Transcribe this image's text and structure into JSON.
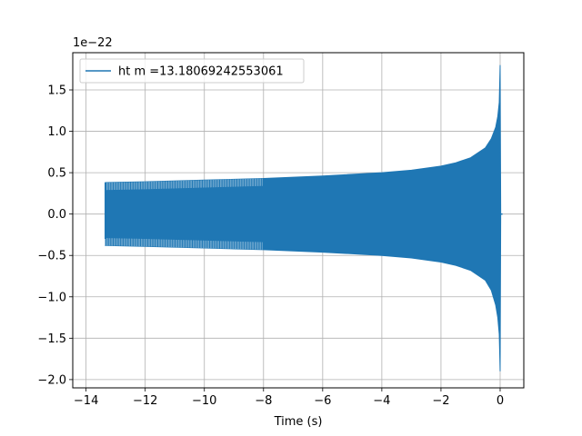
{
  "chart_data": {
    "type": "line",
    "title": "",
    "xlabel": "Time (s)",
    "ylabel": "",
    "offset_text": "1e−22",
    "xlim": [
      -14.45,
      0.8
    ],
    "ylim": [
      -2.1,
      1.95
    ],
    "xticks": [
      -14,
      -12,
      -10,
      -8,
      -6,
      -4,
      -2,
      0
    ],
    "xtick_labels": [
      "−14",
      "−12",
      "−10",
      "−8",
      "−6",
      "−4",
      "−2",
      "0"
    ],
    "yticks": [
      -2.0,
      -1.5,
      -1.0,
      -0.5,
      0.0,
      0.5,
      1.0,
      1.5
    ],
    "ytick_labels": [
      "−2.0",
      "−1.5",
      "−1.0",
      "−0.5",
      "0.0",
      "0.5",
      "1.0",
      "1.5"
    ],
    "grid": true,
    "legend_placement": "upper-left",
    "series": [
      {
        "name": "ht m =13.18069242553061",
        "color": "#1f77b4",
        "envelope": {
          "x": [
            -13.35,
            -12.0,
            -10.0,
            -8.0,
            -6.0,
            -4.0,
            -3.0,
            -2.0,
            -1.5,
            -1.0,
            -0.5,
            -0.3,
            -0.15,
            -0.08,
            -0.03,
            0.0,
            0.02
          ],
          "upper": [
            0.38,
            0.39,
            0.41,
            0.43,
            0.46,
            0.5,
            0.53,
            0.58,
            0.62,
            0.68,
            0.8,
            0.91,
            1.05,
            1.18,
            1.35,
            1.8,
            0.0
          ],
          "lower": [
            -0.38,
            -0.39,
            -0.41,
            -0.43,
            -0.46,
            -0.5,
            -0.53,
            -0.58,
            -0.62,
            -0.68,
            -0.8,
            -0.92,
            -1.1,
            -1.25,
            -1.45,
            -1.9,
            0.0
          ]
        }
      }
    ]
  }
}
